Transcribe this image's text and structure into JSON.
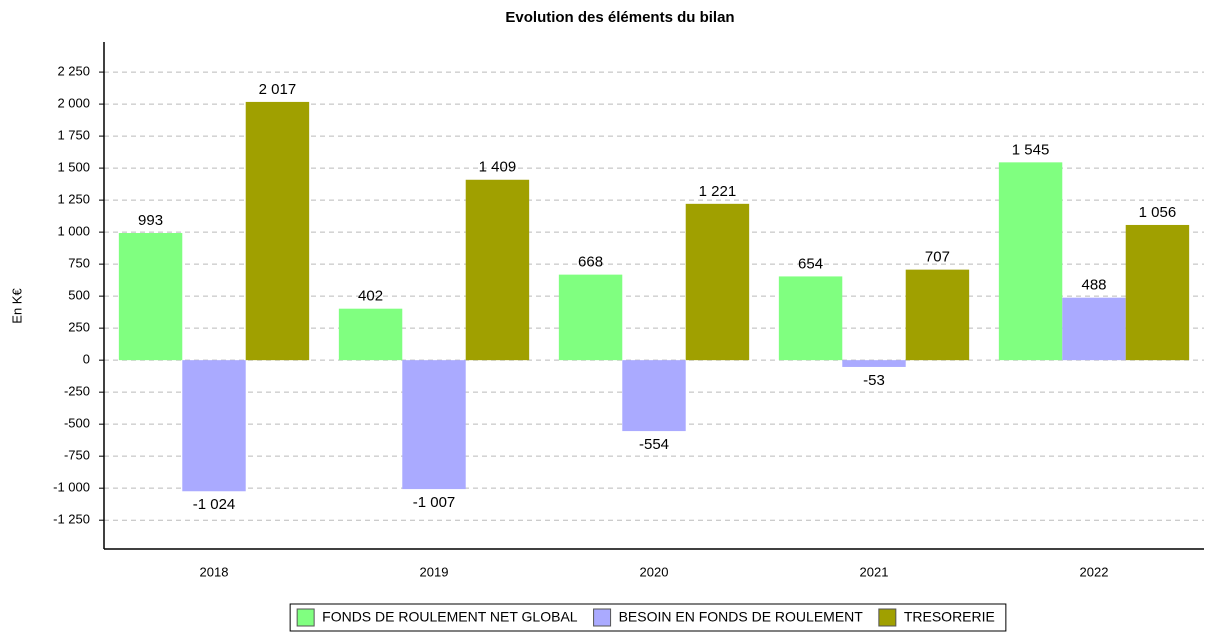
{
  "chart_data": {
    "type": "bar",
    "title": "Evolution des éléments du bilan",
    "y_label": "En K€",
    "categories": [
      "2018",
      "2019",
      "2020",
      "2021",
      "2022"
    ],
    "series": [
      {
        "name": "FONDS DE ROULEMENT NET GLOBAL",
        "color": "#80ff80",
        "values": [
          993,
          402,
          668,
          654,
          1545
        ],
        "value_labels": [
          "993",
          "402",
          "668",
          "654",
          "1 545"
        ]
      },
      {
        "name": "BESOIN EN FONDS DE ROULEMENT",
        "color": "#aaaaff",
        "values": [
          -1024,
          -1007,
          -554,
          -53,
          488
        ],
        "value_labels": [
          "-1 024",
          "-1 007",
          "-554",
          "-53",
          "488"
        ]
      },
      {
        "name": "TRESORERIE",
        "color": "#a0a000",
        "values": [
          2017,
          1409,
          1221,
          707,
          1056
        ],
        "value_labels": [
          "2 017",
          "1 409",
          "1 221",
          "707",
          "1 056"
        ]
      }
    ],
    "ylim": [
      -1475,
      2485
    ],
    "yticks": [
      {
        "value": -1250,
        "label": "-1 250"
      },
      {
        "value": -1000,
        "label": "-1 000"
      },
      -750,
      -500,
      -250,
      0,
      250,
      500,
      750,
      {
        "value": 1000,
        "label": "1 000"
      },
      {
        "value": 1250,
        "label": "1 250"
      },
      {
        "value": 1500,
        "label": "1 500"
      },
      {
        "value": 1750,
        "label": "1 750"
      },
      {
        "value": 2000,
        "label": "2 000"
      },
      {
        "value": 2250,
        "label": "2 250"
      }
    ],
    "grid": true,
    "legend": "bottom"
  }
}
